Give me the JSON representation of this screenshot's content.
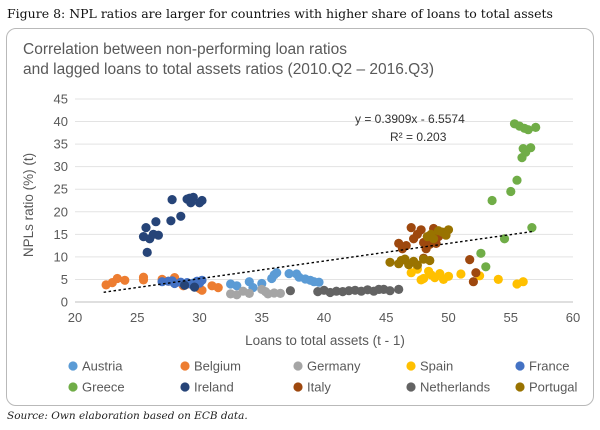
{
  "caption": "Figure 8: NPL ratios are larger for countries with higher share of loans to total assets",
  "source": "Source: Own elaboration based on ECB data.",
  "chart_data": {
    "type": "scatter",
    "title": "Correlation between non-performing loan ratios and lagged loans to total assets ratios (2010.Q2 – 2016.Q3)",
    "title_lines": [
      "Correlation between non-performing loan ratios",
      "and lagged loans to total assets ratios (2010.Q2 – 2016.Q3)"
    ],
    "xlabel": "Loans to total assets (t - 1)",
    "ylabel": "NPLs ratio (%) (t)",
    "xlim": [
      20,
      60
    ],
    "ylim": [
      0,
      45
    ],
    "xticks": [
      20,
      25,
      30,
      35,
      40,
      45,
      50,
      55,
      60
    ],
    "yticks": [
      0,
      5,
      10,
      15,
      20,
      25,
      30,
      35,
      40,
      45
    ],
    "grid": "horizontal",
    "legend_position": "bottom",
    "trendline": {
      "type": "linear",
      "slope": 0.3909,
      "intercept": -6.5574,
      "x_range": [
        22.3,
        56.8
      ],
      "equation": "y = 0.3909x - 6.5574",
      "r_squared": "R² = 0.203",
      "color": "#000000"
    },
    "series": [
      {
        "name": "Austria",
        "color": "#5b9bd5",
        "points": [
          [
            32.5,
            4
          ],
          [
            33,
            3.6
          ],
          [
            34,
            4.5
          ],
          [
            34.3,
            3.2
          ],
          [
            35,
            4.1
          ],
          [
            35.8,
            5.2
          ],
          [
            36,
            6
          ],
          [
            36.2,
            6.5
          ],
          [
            37.2,
            6.3
          ],
          [
            37.8,
            6.2
          ],
          [
            38,
            5.5
          ],
          [
            38.5,
            5.1
          ],
          [
            38.9,
            4.8
          ],
          [
            39.2,
            4.5
          ],
          [
            39.6,
            4.4
          ],
          [
            29.5,
            4.2
          ]
        ]
      },
      {
        "name": "Belgium",
        "color": "#ed7d31",
        "points": [
          [
            22.5,
            3.8
          ],
          [
            23,
            4.3
          ],
          [
            23.4,
            5.2
          ],
          [
            24,
            4.8
          ],
          [
            25.5,
            4.9
          ],
          [
            25.5,
            5.5
          ],
          [
            27,
            5
          ],
          [
            27.5,
            4.6
          ],
          [
            28,
            5.4
          ],
          [
            28.2,
            4.4
          ],
          [
            29,
            4
          ],
          [
            29.5,
            3.8
          ],
          [
            30,
            3
          ],
          [
            30.2,
            2.6
          ],
          [
            31,
            3.6
          ],
          [
            31.5,
            3.2
          ],
          [
            28.7,
            3.6
          ]
        ]
      },
      {
        "name": "Germany",
        "color": "#a5a5a5",
        "points": [
          [
            32.5,
            1.8
          ],
          [
            33,
            1.6
          ],
          [
            33.5,
            2.4
          ],
          [
            34,
            1.9
          ],
          [
            35,
            2.8
          ],
          [
            35.5,
            1.8
          ],
          [
            36,
            2
          ],
          [
            36.5,
            1.9
          ],
          [
            35.3,
            2.3
          ]
        ]
      },
      {
        "name": "Spain",
        "color": "#ffc000",
        "points": [
          [
            47,
            6.5
          ],
          [
            47.5,
            7.3
          ],
          [
            48,
            5.2
          ],
          [
            48.4,
            6.8
          ],
          [
            48.6,
            6
          ],
          [
            48.9,
            5.4
          ],
          [
            49.3,
            6.3
          ],
          [
            49.6,
            5
          ],
          [
            50,
            5.7
          ],
          [
            51,
            6.2
          ],
          [
            52.5,
            5.8
          ],
          [
            54,
            5
          ],
          [
            55.5,
            4
          ],
          [
            56,
            4.5
          ],
          [
            47.8,
            4.9
          ]
        ]
      },
      {
        "name": "France",
        "color": "#4472c4",
        "points": [
          [
            27,
            4.5
          ],
          [
            27.5,
            4.6
          ],
          [
            28,
            4.1
          ],
          [
            28.5,
            4.4
          ],
          [
            29,
            4.3
          ],
          [
            29.3,
            4
          ],
          [
            29.6,
            3.9
          ],
          [
            29.8,
            4.6
          ],
          [
            30,
            4.2
          ],
          [
            30.2,
            4.8
          ],
          [
            27.8,
            4.7
          ]
        ]
      },
      {
        "name": "Greece",
        "color": "#70ad47",
        "points": [
          [
            53.5,
            22.5
          ],
          [
            54.5,
            14
          ],
          [
            55,
            24.5
          ],
          [
            55.3,
            39.5
          ],
          [
            55.5,
            27
          ],
          [
            55.7,
            39
          ],
          [
            55.9,
            32
          ],
          [
            56,
            34
          ],
          [
            56.1,
            38.5
          ],
          [
            56.2,
            33.2
          ],
          [
            56.4,
            38.2
          ],
          [
            56.6,
            34.2
          ],
          [
            56.7,
            16.5
          ],
          [
            57,
            38.7
          ],
          [
            53,
            7.8
          ],
          [
            52.6,
            10.8
          ]
        ]
      },
      {
        "name": "Ireland",
        "color": "#264478",
        "points": [
          [
            25.5,
            14.5
          ],
          [
            25.7,
            16.5
          ],
          [
            25.8,
            11
          ],
          [
            26,
            14
          ],
          [
            26.3,
            15
          ],
          [
            26.5,
            17.8
          ],
          [
            26.7,
            14.8
          ],
          [
            27.7,
            18
          ],
          [
            27.8,
            22.7
          ],
          [
            28.5,
            19
          ],
          [
            29,
            22.8
          ],
          [
            29.2,
            23
          ],
          [
            29.3,
            22
          ],
          [
            29.5,
            23.2
          ],
          [
            30,
            22
          ],
          [
            30.2,
            22.5
          ],
          [
            28.8,
            3.7
          ],
          [
            29.6,
            3.3
          ]
        ]
      },
      {
        "name": "Italy",
        "color": "#9e480e",
        "points": [
          [
            46,
            13
          ],
          [
            46.3,
            11.8
          ],
          [
            46.6,
            12.5
          ],
          [
            47,
            16.5
          ],
          [
            47.2,
            14
          ],
          [
            47.5,
            15
          ],
          [
            47.8,
            16
          ],
          [
            48,
            13.2
          ],
          [
            48.2,
            11.8
          ],
          [
            48.5,
            12.8
          ],
          [
            48.8,
            16.3
          ],
          [
            49,
            13
          ],
          [
            49.2,
            14.5
          ],
          [
            48,
            9.7
          ],
          [
            51.7,
            9.4
          ],
          [
            52.2,
            6.5
          ],
          [
            52,
            4.5
          ]
        ]
      },
      {
        "name": "Netherlands",
        "color": "#636363",
        "points": [
          [
            37.3,
            2.5
          ],
          [
            39.5,
            2.3
          ],
          [
            40,
            2.6
          ],
          [
            40.5,
            2.1
          ],
          [
            41,
            2.4
          ],
          [
            41.5,
            2.3
          ],
          [
            42,
            2.5
          ],
          [
            42.5,
            2.6
          ],
          [
            43,
            2.4
          ],
          [
            43.5,
            2.7
          ],
          [
            44,
            2.4
          ],
          [
            44.4,
            2.8
          ],
          [
            44.8,
            2.8
          ],
          [
            45.3,
            2.5
          ],
          [
            46,
            2.8
          ]
        ]
      },
      {
        "name": "Portugal",
        "color": "#997300",
        "points": [
          [
            45.3,
            8.8
          ],
          [
            46,
            8.5
          ],
          [
            46.2,
            9.2
          ],
          [
            46.8,
            8.3
          ],
          [
            47.2,
            9
          ],
          [
            47.5,
            8.2
          ],
          [
            48,
            9.5
          ],
          [
            48.3,
            14.5
          ],
          [
            48.6,
            15
          ],
          [
            48.8,
            14
          ],
          [
            49.2,
            15.8
          ],
          [
            49.5,
            15.5
          ],
          [
            50,
            16
          ],
          [
            49.8,
            14.8
          ],
          [
            48.5,
            9.2
          ],
          [
            46.5,
            9.5
          ]
        ]
      }
    ]
  }
}
